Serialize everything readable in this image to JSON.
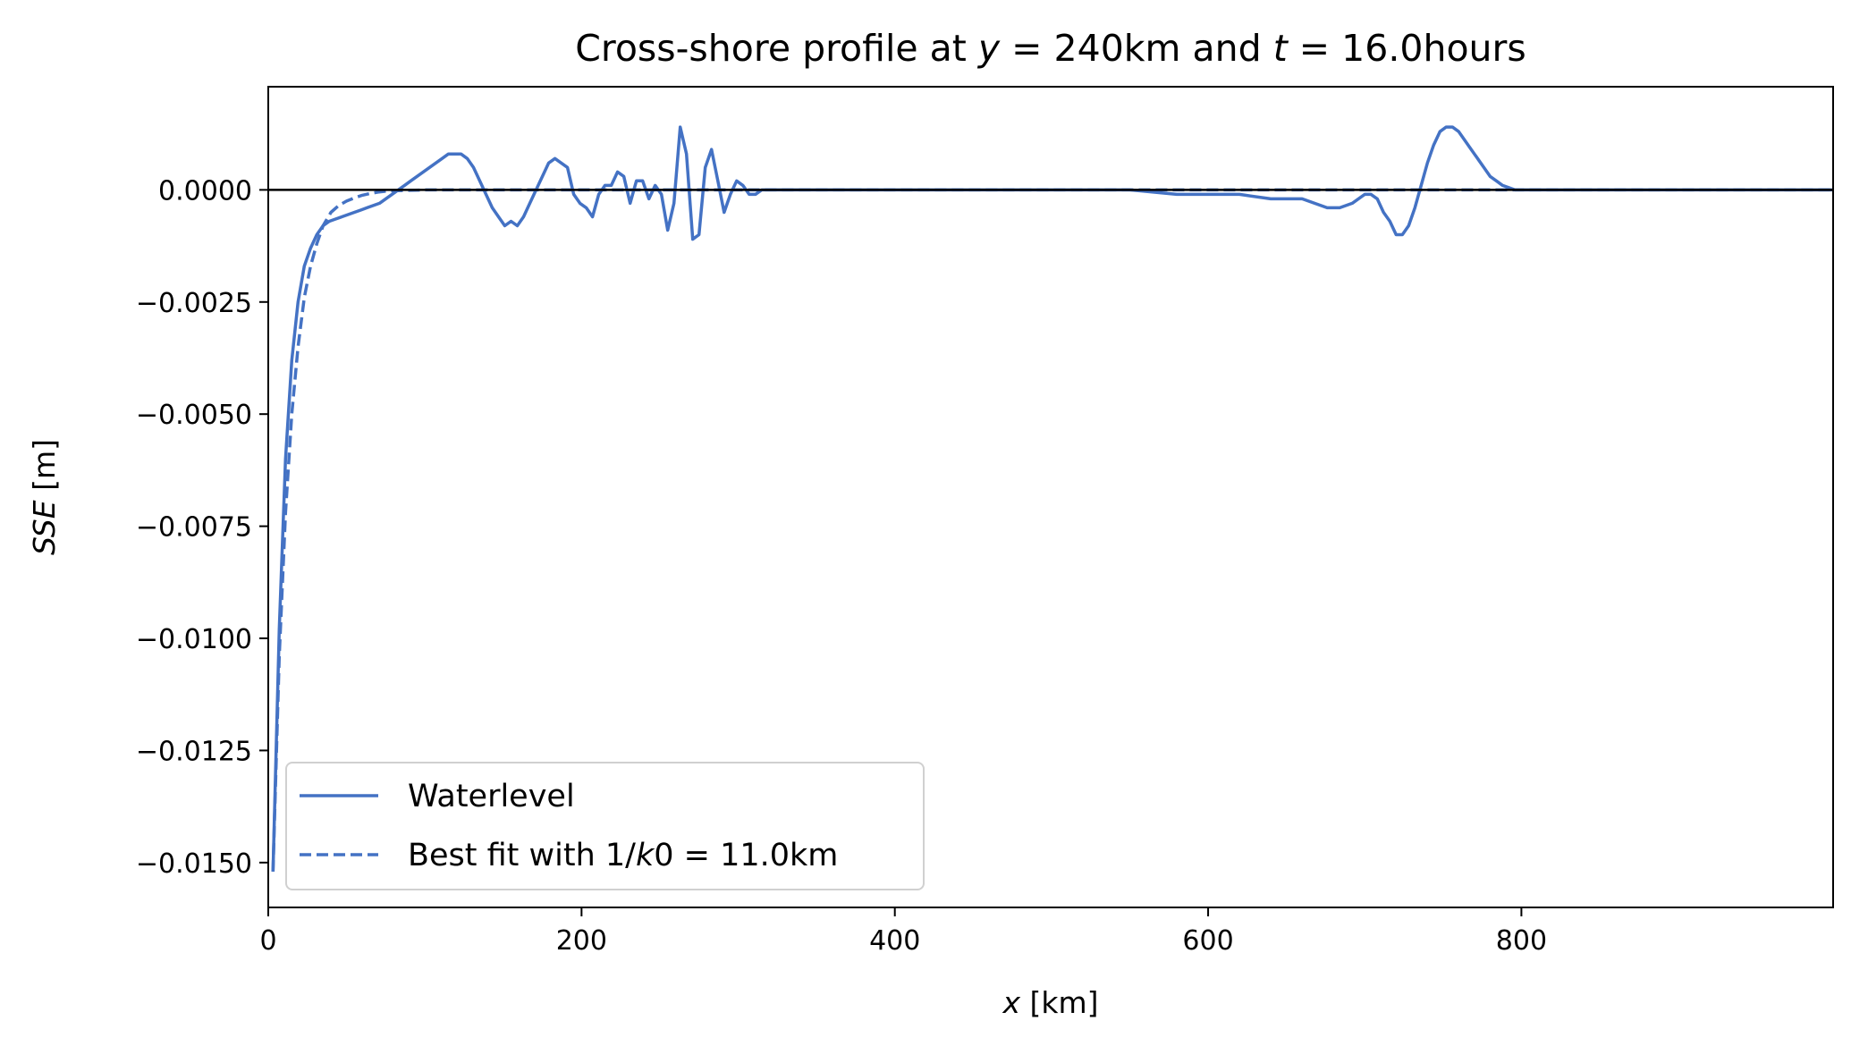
{
  "chart_data": {
    "type": "line",
    "title": {
      "prefix": "Cross-shore profile at ",
      "y_var": "y",
      "y_eq": " = 240km and ",
      "t_var": "t",
      "t_eq": " = 16.0hours"
    },
    "xlabel": {
      "var": "x",
      "unit": " [km]"
    },
    "ylabel": {
      "var": "SSE",
      "unit": " [m]"
    },
    "xlim": [
      0,
      999
    ],
    "ylim": [
      -0.016,
      0.0023
    ],
    "xticks": [
      0,
      200,
      400,
      600,
      800
    ],
    "xtick_labels": [
      "0",
      "200",
      "400",
      "600",
      "800"
    ],
    "yticks": [
      0.0,
      -0.0025,
      -0.005,
      -0.0075,
      -0.01,
      -0.0125,
      -0.015
    ],
    "ytick_labels": [
      "0.0000",
      "−0.0025",
      "−0.0050",
      "−0.0075",
      "−0.0100",
      "−0.0125",
      "−0.0150"
    ],
    "grid": false,
    "legend_position": "lower-left",
    "reference_line_y": 0,
    "series": [
      {
        "name": "Waterlevel",
        "style": "solid",
        "color": "#4472c4",
        "x": [
          3,
          7,
          11,
          15,
          19,
          23,
          27,
          31,
          35,
          39,
          43,
          47,
          51,
          55,
          59,
          63,
          67,
          71,
          75,
          79,
          83,
          87,
          91,
          95,
          99,
          103,
          107,
          111,
          115,
          119,
          123,
          127,
          131,
          135,
          139,
          143,
          147,
          151,
          155,
          159,
          163,
          167,
          171,
          175,
          179,
          183,
          187,
          191,
          195,
          199,
          203,
          207,
          211,
          215,
          219,
          223,
          227,
          231,
          235,
          239,
          243,
          247,
          251,
          255,
          259,
          263,
          267,
          271,
          275,
          279,
          283,
          287,
          291,
          295,
          299,
          303,
          307,
          311,
          315,
          319,
          323,
          327,
          331,
          335,
          339,
          343,
          347,
          351,
          355,
          360,
          380,
          400,
          450,
          500,
          550,
          580,
          600,
          620,
          640,
          660,
          668,
          676,
          684,
          692,
          700,
          704,
          708,
          712,
          716,
          720,
          724,
          728,
          732,
          736,
          740,
          744,
          748,
          752,
          756,
          760,
          764,
          768,
          772,
          776,
          780,
          784,
          788,
          792,
          796,
          800,
          808,
          816,
          830,
          860,
          900,
          999
        ],
        "y": [
          -0.0152,
          -0.0098,
          -0.006,
          -0.0038,
          -0.0025,
          -0.0017,
          -0.0013,
          -0.001,
          -0.0008,
          -0.0007,
          -0.00065,
          -0.0006,
          -0.00055,
          -0.0005,
          -0.00045,
          -0.0004,
          -0.00035,
          -0.0003,
          -0.0002,
          -0.0001,
          0.0,
          0.0001,
          0.0002,
          0.0003,
          0.0004,
          0.0005,
          0.0006,
          0.0007,
          0.0008,
          0.0008,
          0.0008,
          0.0007,
          0.0005,
          0.0002,
          -0.0001,
          -0.0004,
          -0.0006,
          -0.0008,
          -0.0007,
          -0.0008,
          -0.0006,
          -0.0003,
          0.0,
          0.0003,
          0.0006,
          0.0007,
          0.0006,
          0.0005,
          -0.0001,
          -0.0003,
          -0.0004,
          -0.0006,
          -0.0001,
          0.0001,
          0.0001,
          0.0004,
          0.0003,
          -0.0003,
          0.0002,
          0.0002,
          -0.0002,
          0.0001,
          -0.0001,
          -0.0009,
          -0.0003,
          0.0014,
          0.0008,
          -0.0011,
          -0.001,
          0.0005,
          0.0009,
          0.0002,
          -0.0005,
          -0.0001,
          0.0002,
          0.0001,
          -0.0001,
          -0.0001,
          0.0,
          0.0,
          0.0,
          0.0,
          0.0,
          0.0,
          0.0,
          0.0,
          0.0,
          0.0,
          0.0,
          0.0,
          0.0,
          0.0,
          0.0,
          0.0,
          0.0,
          -0.0001,
          -0.0001,
          -0.0001,
          -0.0002,
          -0.0002,
          -0.0003,
          -0.0004,
          -0.0004,
          -0.0003,
          -0.0001,
          -0.0001,
          -0.0002,
          -0.0005,
          -0.0007,
          -0.001,
          -0.001,
          -0.0008,
          -0.0004,
          0.0001,
          0.0006,
          0.001,
          0.0013,
          0.0014,
          0.0014,
          0.0013,
          0.0011,
          0.0009,
          0.0007,
          0.0005,
          0.0003,
          0.0002,
          0.0001,
          5e-05,
          0.0,
          0.0,
          0.0,
          0.0,
          0.0,
          0.0,
          0.0,
          0.0
        ]
      },
      {
        "name": "Best fit with 1/k0 = 11.0km",
        "name_parts": {
          "prefix": "Best fit with 1/",
          "var": "k",
          "suffix": "0 = 11.0km"
        },
        "style": "dashed",
        "color": "#4472c4",
        "x": [
          3,
          7,
          11,
          15,
          19,
          23,
          27,
          31,
          35,
          40,
          45,
          50,
          55,
          60,
          65,
          70,
          75,
          80,
          90,
          100,
          120,
          150,
          200,
          300,
          400,
          600,
          800,
          999
        ],
        "y": [
          -0.0152,
          -0.0104,
          -0.0072,
          -0.005,
          -0.0035,
          -0.0024,
          -0.0017,
          -0.0012,
          -0.0008,
          -0.0005,
          -0.00035,
          -0.00025,
          -0.00018,
          -0.00012,
          -8e-05,
          -5e-05,
          -3e-05,
          -2e-05,
          -1e-05,
          0.0,
          0.0,
          0.0,
          0.0,
          0.0,
          0.0,
          0.0,
          0.0,
          0.0
        ]
      }
    ]
  }
}
